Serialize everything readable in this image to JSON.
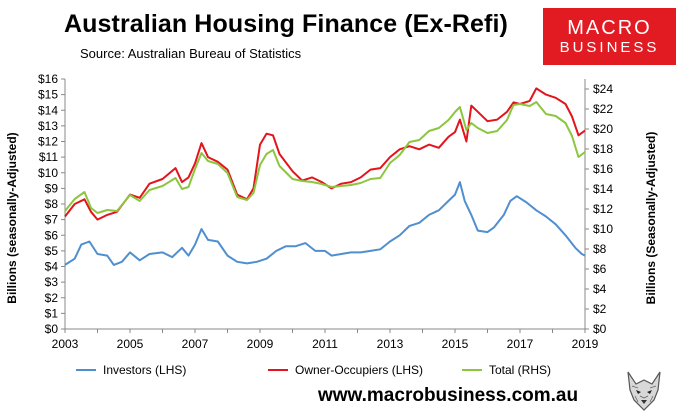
{
  "header": {
    "title": "Australian Housing Finance (Ex-Refi)",
    "source": "Source: Australian Bureau of Statistics"
  },
  "logo": {
    "line1": "MACRO",
    "line2": "BUSINESS",
    "bg": "#e21b23"
  },
  "footer": {
    "website": "www.macrobusiness.com.au",
    "mascot": "wolf-icon"
  },
  "chart_data": {
    "type": "line",
    "title": "Australian Housing Finance (Ex-Refi)",
    "ylabel_left": "Billions (seasonally-Adjusted)",
    "ylabel_right": "Billions (Seasonally-Adjusted)",
    "xlim": [
      2003,
      2019
    ],
    "ylim_left": [
      0,
      16
    ],
    "ylim_right": [
      0,
      25
    ],
    "xticks": [
      2003,
      2005,
      2007,
      2009,
      2011,
      2013,
      2015,
      2017,
      2019
    ],
    "left_ticks": [
      "$0",
      "$1",
      "$2",
      "$3",
      "$4",
      "$5",
      "$6",
      "$7",
      "$8",
      "$9",
      "$10",
      "$11",
      "$12",
      "$13",
      "$14",
      "$15",
      "$16"
    ],
    "right_ticks": [
      "$0",
      "$2",
      "$4",
      "$6",
      "$8",
      "$10",
      "$12",
      "$14",
      "$16",
      "$18",
      "$20",
      "$22",
      "$24"
    ],
    "series": [
      {
        "name": "Investors (LHS)",
        "axis": "left",
        "color": "#4f8fcf",
        "points": [
          [
            2003.0,
            4.1
          ],
          [
            2003.3,
            4.5
          ],
          [
            2003.5,
            5.4
          ],
          [
            2003.75,
            5.6
          ],
          [
            2004.0,
            4.8
          ],
          [
            2004.3,
            4.7
          ],
          [
            2004.5,
            4.1
          ],
          [
            2004.75,
            4.3
          ],
          [
            2005.0,
            4.9
          ],
          [
            2005.3,
            4.4
          ],
          [
            2005.6,
            4.8
          ],
          [
            2006.0,
            4.9
          ],
          [
            2006.3,
            4.6
          ],
          [
            2006.6,
            5.2
          ],
          [
            2006.8,
            4.7
          ],
          [
            2007.0,
            5.4
          ],
          [
            2007.2,
            6.4
          ],
          [
            2007.4,
            5.7
          ],
          [
            2007.7,
            5.6
          ],
          [
            2008.0,
            4.7
          ],
          [
            2008.3,
            4.3
          ],
          [
            2008.6,
            4.2
          ],
          [
            2008.9,
            4.3
          ],
          [
            2009.2,
            4.5
          ],
          [
            2009.5,
            5.0
          ],
          [
            2009.8,
            5.3
          ],
          [
            2010.1,
            5.3
          ],
          [
            2010.4,
            5.5
          ],
          [
            2010.7,
            5.0
          ],
          [
            2011.0,
            5.0
          ],
          [
            2011.2,
            4.7
          ],
          [
            2011.5,
            4.8
          ],
          [
            2011.8,
            4.9
          ],
          [
            2012.1,
            4.9
          ],
          [
            2012.4,
            5.0
          ],
          [
            2012.7,
            5.1
          ],
          [
            2013.0,
            5.6
          ],
          [
            2013.3,
            6.0
          ],
          [
            2013.6,
            6.6
          ],
          [
            2013.9,
            6.8
          ],
          [
            2014.2,
            7.3
          ],
          [
            2014.5,
            7.6
          ],
          [
            2014.8,
            8.2
          ],
          [
            2015.0,
            8.6
          ],
          [
            2015.15,
            9.4
          ],
          [
            2015.3,
            8.2
          ],
          [
            2015.5,
            7.3
          ],
          [
            2015.7,
            6.3
          ],
          [
            2016.0,
            6.2
          ],
          [
            2016.2,
            6.5
          ],
          [
            2016.5,
            7.3
          ],
          [
            2016.7,
            8.2
          ],
          [
            2016.9,
            8.5
          ],
          [
            2017.2,
            8.1
          ],
          [
            2017.5,
            7.6
          ],
          [
            2017.8,
            7.2
          ],
          [
            2018.1,
            6.7
          ],
          [
            2018.4,
            6.0
          ],
          [
            2018.7,
            5.2
          ],
          [
            2018.9,
            4.8
          ],
          [
            2019.0,
            4.7
          ]
        ]
      },
      {
        "name": "Owner-Occupiers (LHS)",
        "axis": "left",
        "color": "#e3141c",
        "points": [
          [
            2003.0,
            7.2
          ],
          [
            2003.3,
            8.0
          ],
          [
            2003.6,
            8.3
          ],
          [
            2003.8,
            7.5
          ],
          [
            2004.0,
            7.0
          ],
          [
            2004.3,
            7.3
          ],
          [
            2004.6,
            7.5
          ],
          [
            2005.0,
            8.6
          ],
          [
            2005.3,
            8.4
          ],
          [
            2005.6,
            9.3
          ],
          [
            2006.0,
            9.6
          ],
          [
            2006.4,
            10.3
          ],
          [
            2006.6,
            9.4
          ],
          [
            2006.8,
            9.7
          ],
          [
            2007.0,
            10.6
          ],
          [
            2007.2,
            11.9
          ],
          [
            2007.4,
            11.0
          ],
          [
            2007.7,
            10.7
          ],
          [
            2008.0,
            10.2
          ],
          [
            2008.3,
            8.6
          ],
          [
            2008.6,
            8.3
          ],
          [
            2008.8,
            9.0
          ],
          [
            2009.0,
            11.8
          ],
          [
            2009.2,
            12.5
          ],
          [
            2009.4,
            12.4
          ],
          [
            2009.6,
            11.2
          ],
          [
            2010.0,
            10.1
          ],
          [
            2010.3,
            9.5
          ],
          [
            2010.6,
            9.7
          ],
          [
            2010.9,
            9.4
          ],
          [
            2011.2,
            9.0
          ],
          [
            2011.5,
            9.3
          ],
          [
            2011.8,
            9.4
          ],
          [
            2012.1,
            9.7
          ],
          [
            2012.4,
            10.2
          ],
          [
            2012.7,
            10.3
          ],
          [
            2013.0,
            11.0
          ],
          [
            2013.3,
            11.5
          ],
          [
            2013.6,
            11.7
          ],
          [
            2013.9,
            11.5
          ],
          [
            2014.2,
            11.8
          ],
          [
            2014.5,
            11.6
          ],
          [
            2014.8,
            12.3
          ],
          [
            2015.0,
            12.6
          ],
          [
            2015.15,
            13.4
          ],
          [
            2015.35,
            12.0
          ],
          [
            2015.5,
            14.3
          ],
          [
            2015.7,
            13.9
          ],
          [
            2016.0,
            13.3
          ],
          [
            2016.3,
            13.4
          ],
          [
            2016.6,
            13.9
          ],
          [
            2016.8,
            14.5
          ],
          [
            2017.0,
            14.4
          ],
          [
            2017.3,
            14.6
          ],
          [
            2017.5,
            15.4
          ],
          [
            2017.8,
            15.0
          ],
          [
            2018.1,
            14.8
          ],
          [
            2018.4,
            14.4
          ],
          [
            2018.6,
            13.6
          ],
          [
            2018.8,
            12.4
          ],
          [
            2019.0,
            12.7
          ]
        ]
      },
      {
        "name": "Total (RHS)",
        "axis": "right",
        "color": "#8cc63f",
        "points": [
          [
            2003.0,
            11.8
          ],
          [
            2003.3,
            13.0
          ],
          [
            2003.6,
            13.7
          ],
          [
            2003.8,
            12.1
          ],
          [
            2004.0,
            11.6
          ],
          [
            2004.3,
            11.9
          ],
          [
            2004.6,
            11.8
          ],
          [
            2005.0,
            13.4
          ],
          [
            2005.3,
            12.8
          ],
          [
            2005.6,
            13.9
          ],
          [
            2006.0,
            14.3
          ],
          [
            2006.4,
            15.1
          ],
          [
            2006.6,
            14.0
          ],
          [
            2006.8,
            14.2
          ],
          [
            2007.0,
            16.0
          ],
          [
            2007.2,
            17.6
          ],
          [
            2007.4,
            16.8
          ],
          [
            2007.7,
            16.5
          ],
          [
            2008.0,
            15.6
          ],
          [
            2008.3,
            13.2
          ],
          [
            2008.6,
            12.9
          ],
          [
            2008.8,
            13.6
          ],
          [
            2009.0,
            16.4
          ],
          [
            2009.2,
            17.5
          ],
          [
            2009.4,
            17.9
          ],
          [
            2009.6,
            16.3
          ],
          [
            2010.0,
            15.0
          ],
          [
            2010.3,
            14.8
          ],
          [
            2010.6,
            14.7
          ],
          [
            2010.9,
            14.5
          ],
          [
            2011.2,
            14.2
          ],
          [
            2011.5,
            14.3
          ],
          [
            2011.8,
            14.4
          ],
          [
            2012.1,
            14.6
          ],
          [
            2012.4,
            15.0
          ],
          [
            2012.7,
            15.1
          ],
          [
            2013.0,
            16.6
          ],
          [
            2013.3,
            17.4
          ],
          [
            2013.6,
            18.7
          ],
          [
            2013.9,
            18.9
          ],
          [
            2014.2,
            19.8
          ],
          [
            2014.5,
            20.1
          ],
          [
            2014.8,
            20.9
          ],
          [
            2015.0,
            21.7
          ],
          [
            2015.15,
            22.2
          ],
          [
            2015.35,
            19.9
          ],
          [
            2015.5,
            20.6
          ],
          [
            2015.7,
            20.1
          ],
          [
            2016.0,
            19.6
          ],
          [
            2016.3,
            19.8
          ],
          [
            2016.6,
            20.9
          ],
          [
            2016.8,
            22.4
          ],
          [
            2017.0,
            22.5
          ],
          [
            2017.3,
            22.3
          ],
          [
            2017.5,
            22.7
          ],
          [
            2017.8,
            21.5
          ],
          [
            2018.1,
            21.3
          ],
          [
            2018.4,
            20.6
          ],
          [
            2018.6,
            19.3
          ],
          [
            2018.8,
            17.2
          ],
          [
            2019.0,
            17.7
          ]
        ]
      }
    ]
  }
}
